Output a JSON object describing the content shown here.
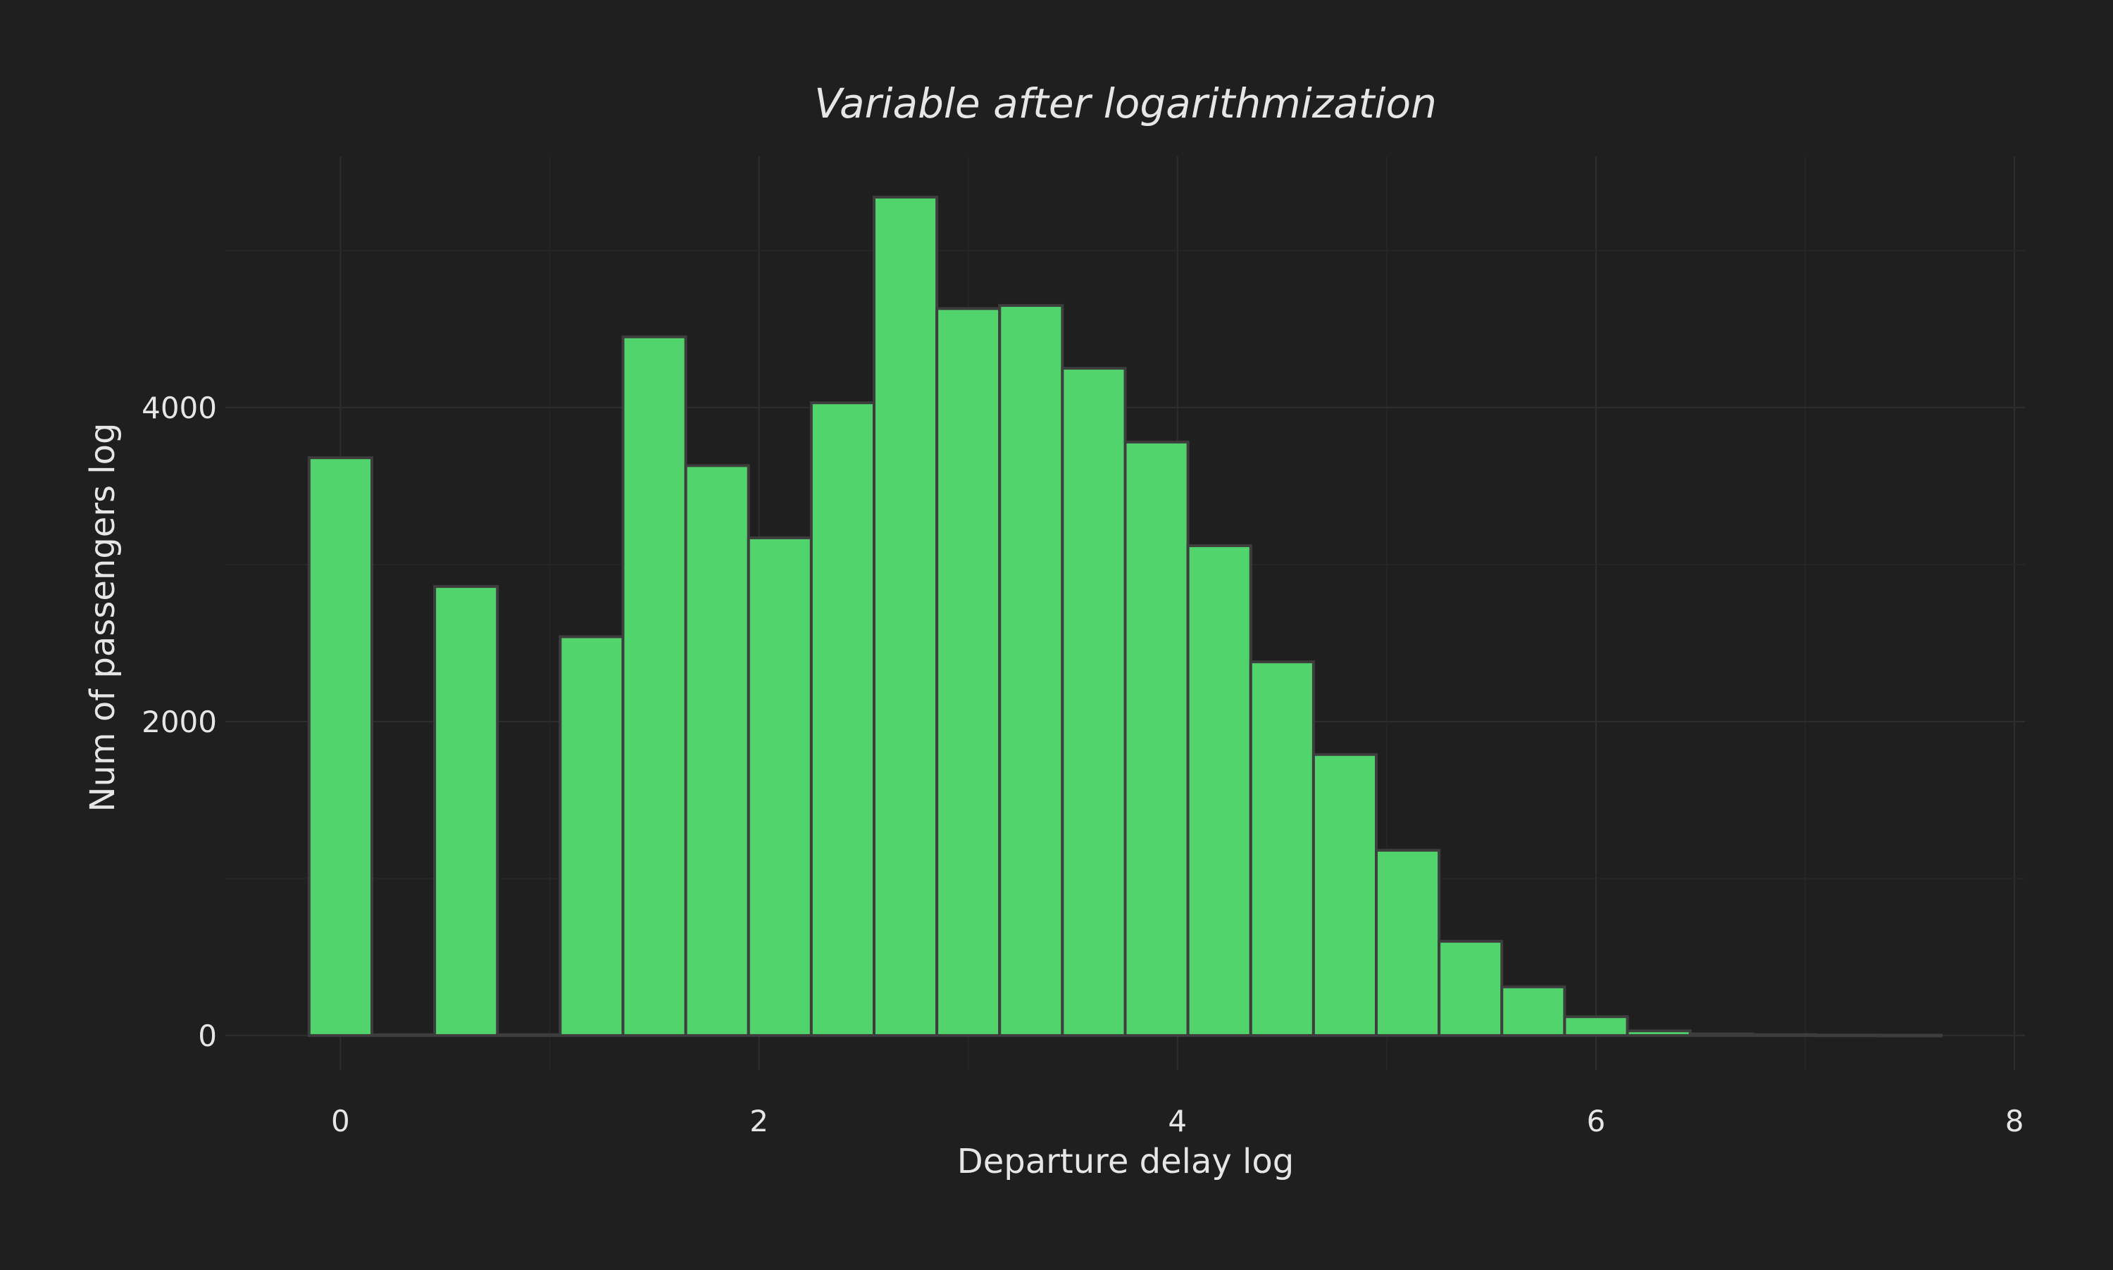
{
  "chart_data": {
    "type": "bar",
    "title": "Variable after logarithmization",
    "xlabel": "Departure delay log",
    "ylabel": "Num of passengers log",
    "xlim": [
      -0.55,
      8.05
    ],
    "ylim": [
      -220,
      5600
    ],
    "x_ticks": [
      0,
      2,
      4,
      6,
      8
    ],
    "y_ticks": [
      0,
      2000,
      4000
    ],
    "grid": true,
    "legend": "none",
    "bin_width": 0.3,
    "series": [
      {
        "x": [
          0.0,
          0.3,
          0.6,
          0.9,
          1.2,
          1.5,
          1.8,
          2.1,
          2.4,
          2.7,
          3.0,
          3.3,
          3.6,
          3.9,
          4.2,
          4.5,
          4.8,
          5.1,
          5.4,
          5.7,
          6.0,
          6.3,
          6.6,
          6.9,
          7.2,
          7.5
        ],
        "values": [
          3680,
          5,
          2860,
          5,
          2540,
          4450,
          3630,
          3170,
          4030,
          5340,
          4630,
          4650,
          4250,
          3780,
          3120,
          2380,
          1790,
          1180,
          600,
          310,
          120,
          30,
          10,
          6,
          3,
          2
        ]
      }
    ],
    "colors": {
      "bar_fill": "#51d46b",
      "bar_edge": "#3d3d3d",
      "background": "#1f1f1f",
      "text": "#e6e6e6",
      "grid": "#2e2e2e"
    }
  }
}
